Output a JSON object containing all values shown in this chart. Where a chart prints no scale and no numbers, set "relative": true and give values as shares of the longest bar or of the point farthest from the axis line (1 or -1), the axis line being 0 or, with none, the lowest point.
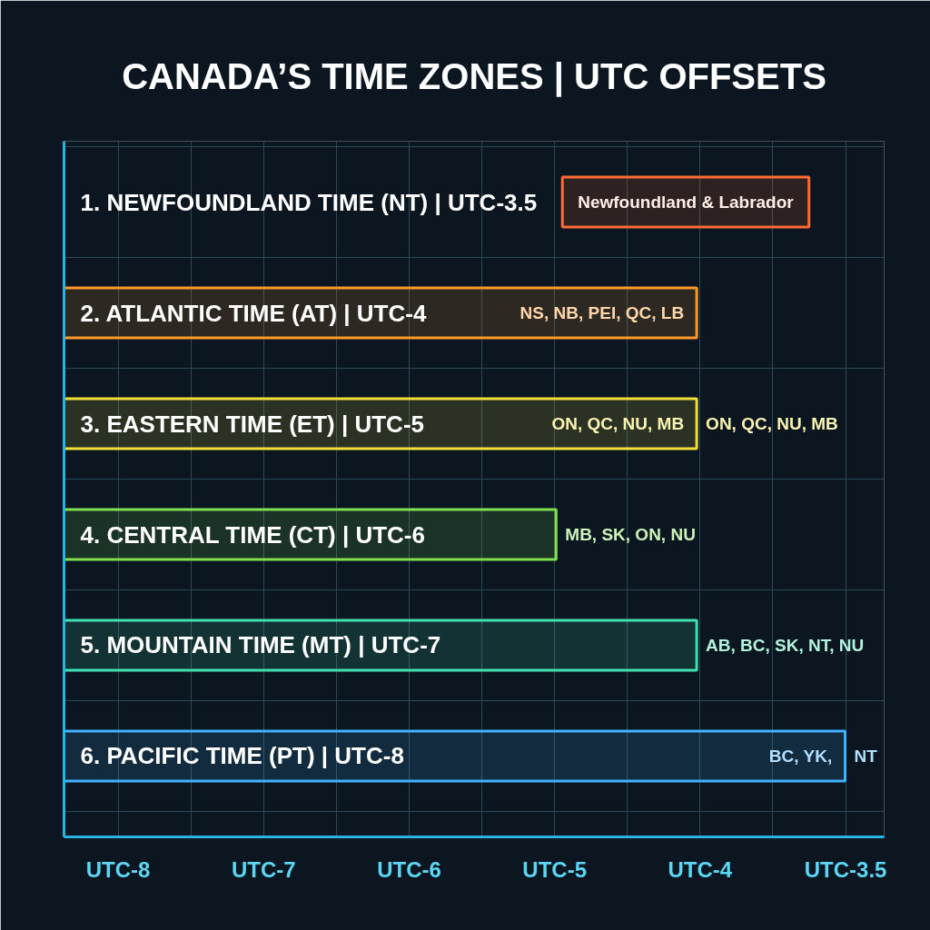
{
  "chart_data": {
    "type": "bar",
    "orientation": "horizontal",
    "relative": true,
    "title": "CANADA’S TIME ZONES | UTC OFFSETS",
    "categories": [
      "1. NEWFOUNDLAND TIME (NT) | UTC-3.5",
      "2. ATLANTIC TIME (AT) | UTC-4",
      "3. EASTERN TIME (ET) | UTC-5",
      "4. CENTRAL TIME (CT) | UTC-6",
      "5. MOUNTAIN TIME (MT) | UTC-7",
      "6. PACIFIC TIME (PT) | UTC-8"
    ],
    "values": [
      null,
      0.81,
      0.81,
      0.63,
      0.81,
      1
    ],
    "colors": [
      "#ff6a35",
      "#ff9a2a",
      "#f2e03a",
      "#80e050",
      "#40e0b0",
      "#40b0ff"
    ],
    "grid": true,
    "annotations": [
      "Newfoundland & Labrador",
      {
        "text": "NS, NB, PEI, QC, LB",
        "x": 0.81,
        "y": "2. ATLANTIC TIME (AT) | UTC-4"
      },
      {
        "text": "ON, QC, NU, MB",
        "x": 0.81,
        "y": "3. EASTERN TIME (ET) | UTC-5"
      },
      {
        "text": "ON, QC, NU, MB",
        "x": 0.81,
        "y": "3. EASTERN TIME (ET) | UTC-5"
      },
      {
        "text": "MB, SK, ON, NU",
        "x": 0.63,
        "y": "4. CENTRAL TIME (CT) | UTC-6"
      },
      {
        "text": "AB, BC, SK, NT, NU",
        "x": 0.81,
        "y": "5. MOUNTAIN TIME (MT) | UTC-7"
      },
      {
        "text": "BC, YK,",
        "x": 1,
        "y": "6. PACIFIC TIME (PT) | UTC-8"
      },
      {
        "text": "NT",
        "x": 1,
        "y": "6. PACIFIC TIME (PT) | UTC-8"
      },
      "UTC-8",
      "UTC-7",
      "UTC-6",
      "UTC-5",
      "UTC-4",
      "UTC-3.5"
    ]
  }
}
